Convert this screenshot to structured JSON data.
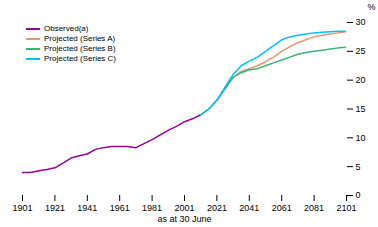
{
  "chart_data": {
    "type": "line",
    "xlabel": "as at 30 June",
    "ylabel": "%",
    "series": [
      {
        "name": "Observed(a)",
        "color": "#990099",
        "x": [
          1901,
          1906,
          1911,
          1916,
          1921,
          1926,
          1931,
          1936,
          1941,
          1946,
          1951,
          1956,
          1961,
          1966,
          1971,
          1976,
          1981,
          1986,
          1991,
          1996,
          2001,
          2006,
          2011
        ],
        "values": [
          4.0,
          4.0,
          4.3,
          4.5,
          4.8,
          5.6,
          6.5,
          6.9,
          7.2,
          8.0,
          8.3,
          8.5,
          8.5,
          8.5,
          8.3,
          9.0,
          9.7,
          10.5,
          11.3,
          12.0,
          12.8,
          13.3,
          14.0
        ]
      },
      {
        "name": "Projected (Series A)",
        "color": "#E8956D",
        "x": [
          2011,
          2016,
          2021,
          2026,
          2031,
          2036,
          2041,
          2046,
          2051,
          2056,
          2061,
          2066,
          2071,
          2076,
          2081,
          2086,
          2091,
          2096,
          2101
        ],
        "values": [
          14.0,
          15.0,
          16.5,
          18.5,
          20.5,
          21.5,
          22.0,
          22.5,
          23.2,
          24.0,
          25.0,
          25.8,
          26.5,
          27.0,
          27.5,
          27.8,
          28.0,
          28.2,
          28.4
        ]
      },
      {
        "name": "Projected (Series B)",
        "color": "#3CB371",
        "x": [
          2011,
          2016,
          2021,
          2026,
          2031,
          2036,
          2041,
          2046,
          2051,
          2056,
          2061,
          2066,
          2071,
          2076,
          2081,
          2086,
          2091,
          2096,
          2101
        ],
        "values": [
          14.0,
          15.0,
          16.5,
          18.5,
          20.5,
          21.3,
          21.8,
          22.0,
          22.5,
          23.0,
          23.5,
          24.0,
          24.5,
          24.8,
          25.0,
          25.2,
          25.4,
          25.6,
          25.7
        ]
      },
      {
        "name": "Projected (Series C)",
        "color": "#00BFFF",
        "x": [
          2011,
          2016,
          2021,
          2026,
          2031,
          2036,
          2041,
          2046,
          2051,
          2056,
          2061,
          2066,
          2071,
          2076,
          2081,
          2086,
          2091,
          2096,
          2101
        ],
        "values": [
          14.0,
          15.0,
          16.5,
          18.8,
          21.0,
          22.5,
          23.3,
          24.0,
          25.0,
          26.0,
          27.0,
          27.5,
          27.8,
          28.0,
          28.2,
          28.3,
          28.4,
          28.5,
          28.5
        ]
      }
    ],
    "xlim": [
      1901,
      2101
    ],
    "xticks": [
      1901,
      1921,
      1941,
      1961,
      1981,
      2001,
      2021,
      2041,
      2061,
      2081,
      2101
    ],
    "ylim": [
      0,
      30
    ],
    "yticks": [
      0,
      5,
      10,
      15,
      20,
      25,
      30
    ],
    "grid": false,
    "legend": "upper left"
  }
}
